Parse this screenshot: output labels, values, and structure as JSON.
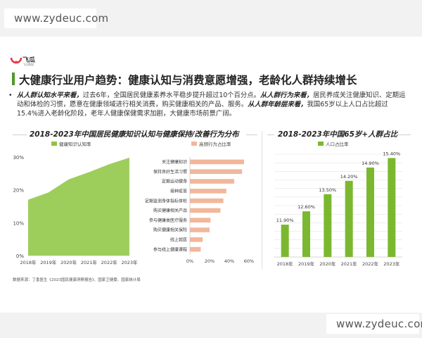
{
  "watermark": {
    "top": "www.zydeuc.com",
    "bottom": "www.zydeuc.com"
  },
  "brand": {
    "name": "飞瓜",
    "sub": "飞瓜数据"
  },
  "page_title": "大健康行业用户趋势：健康认知与消费意愿增强，老龄化人群持续增长",
  "summary": {
    "bullet": "•",
    "lead1": "从人群认知水平来看，",
    "text1": "过去6年，全国居民健康素养水平稳步提升超过10个百分点。",
    "lead2": "从人群行为来看，",
    "text2": "居民养成关注健康知识、定期运动和体检的习惯，愿意在健康领域进行相关消费，购买健康相关的产品、服务。",
    "lead3": "从人群年龄层来看，",
    "text3": "我国65岁以上人口占比超过15.4%进入老龄化阶段，老年人健康保健需求加剧，大健康市场前景广阔。"
  },
  "sections": {
    "left_title": "2018-2023年中国居民健康知识认知与健康保持/改善行为分布",
    "right_title": "2018-2023年中国65岁+人群占比"
  },
  "colors": {
    "green": "#8cc63f",
    "bar_green": "#7cb82f",
    "salmon": "#f2b79b",
    "accent": "#4f9a2a"
  },
  "chart_data": [
    {
      "type": "area",
      "legend": [
        "健康知识认知率"
      ],
      "x": [
        "2018年",
        "2019年",
        "2020年",
        "2021年",
        "2022年",
        "2023年"
      ],
      "series": [
        {
          "name": "健康知识认知率",
          "values": [
            17,
            19.2,
            23.2,
            25.4,
            27.8,
            29.8
          ]
        }
      ],
      "ylim": [
        0,
        30
      ],
      "yticks": [
        "0%",
        "10%",
        "20%",
        "30%"
      ],
      "grid": false
    },
    {
      "type": "bar",
      "orientation": "horizontal",
      "legend": [
        "高频行为占比率"
      ],
      "categories": [
        "关注健康知识",
        "保持良好生活习惯",
        "定期运动健身",
        "接种疫苗",
        "定期监测身体指标体检",
        "购买健康相关产品",
        "参与健康类医疗服务",
        "购买健康相关保险",
        "线上就医",
        "参与线上健康课程"
      ],
      "values": [
        55,
        53,
        45,
        37,
        34,
        31,
        21,
        20,
        13,
        11
      ],
      "xlim": [
        0,
        60
      ],
      "xticks": [
        "0%",
        "20%",
        "40%",
        "60%"
      ]
    },
    {
      "type": "bar",
      "legend": [
        "人口占比率"
      ],
      "categories": [
        "2018年",
        "2019年",
        "2020年",
        "2021年",
        "2022年",
        "2023年"
      ],
      "values": [
        11.9,
        12.6,
        13.5,
        14.2,
        14.9,
        15.4
      ],
      "labels": [
        "11.90%",
        "12.60%",
        "13.50%",
        "14.20%",
        "14.90%",
        "15.40%"
      ],
      "grid": true
    }
  ],
  "source": "数据来源：丁香医生《2023国民健康洞察报告》、国家卫健委、国家统计局"
}
